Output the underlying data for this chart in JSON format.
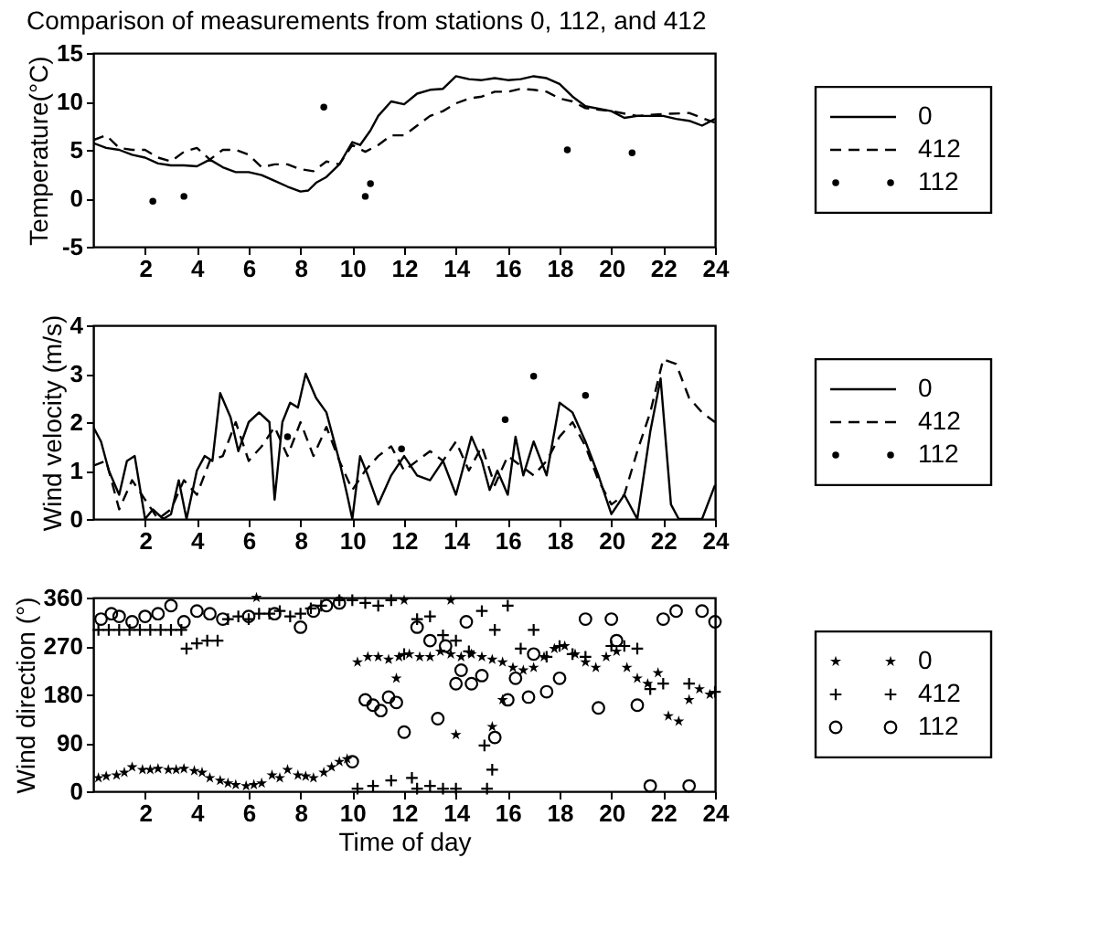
{
  "chart_data": [
    {
      "type": "line",
      "title": "Comparison of measurements from stations 0, 112, and 412",
      "ylabel": "Temperature(°C)",
      "xlim": [
        0,
        24
      ],
      "xticks": [
        2,
        4,
        6,
        8,
        10,
        12,
        14,
        16,
        18,
        20,
        22,
        24
      ],
      "ylim": [
        -5,
        15
      ],
      "yticks": [
        -5,
        0,
        5,
        10,
        15
      ],
      "legend": "right",
      "series": [
        {
          "name": "0",
          "color": "#000000",
          "line_style": "solid",
          "x": [
            0,
            0.5,
            1,
            1.5,
            2,
            2.5,
            3,
            3.5,
            4,
            4.5,
            5,
            5.5,
            6,
            6.5,
            7,
            7.5,
            8,
            8.3,
            8.6,
            9,
            9.5,
            10,
            10.3,
            10.7,
            11,
            11.5,
            12,
            12.5,
            13,
            13.5,
            14,
            14.5,
            15,
            15.5,
            16,
            16.5,
            17,
            17.5,
            18,
            18.5,
            19,
            20,
            20.5,
            21,
            22,
            22.5,
            23,
            23.5,
            24
          ],
          "values": [
            5.7,
            5.2,
            5,
            4.5,
            4.2,
            3.6,
            3.4,
            3.4,
            3.3,
            4.0,
            3.2,
            2.7,
            2.7,
            2.4,
            1.8,
            1.2,
            0.7,
            0.8,
            1.6,
            2.2,
            3.5,
            5.8,
            5.5,
            7.0,
            8.5,
            10,
            9.7,
            10.8,
            11.2,
            11.3,
            12.6,
            12.3,
            12.2,
            12.4,
            12.2,
            12.3,
            12.6,
            12.4,
            11.8,
            10.5,
            9.5,
            9.0,
            8.3,
            8.5,
            8.5,
            8.2,
            8.0,
            7.5,
            8.2
          ]
        },
        {
          "name": "412",
          "color": "#000000",
          "line_style": "dashed",
          "x": [
            0,
            0.5,
            1,
            1.5,
            2,
            2.5,
            3,
            3.5,
            4,
            4.5,
            5,
            5.5,
            6,
            6.5,
            7,
            7.5,
            8,
            8.5,
            9,
            9.5,
            10,
            10.5,
            11,
            11.5,
            12,
            12.5,
            13,
            13.5,
            14,
            14.5,
            15,
            15.5,
            16,
            16.5,
            17,
            17.5,
            18,
            18.5,
            19,
            20,
            21,
            22,
            23,
            23.5,
            24
          ],
          "values": [
            6,
            6.5,
            5.2,
            5,
            5,
            4.2,
            3.8,
            4.8,
            5.2,
            4,
            5,
            5,
            4.5,
            3.2,
            3.5,
            3.5,
            3.0,
            2.8,
            3.8,
            3.5,
            5.5,
            4.8,
            5.5,
            6.5,
            6.5,
            7.5,
            8.5,
            9,
            9.8,
            10.3,
            10.5,
            11,
            11,
            11.3,
            11.2,
            11,
            10.3,
            10.0,
            9.3,
            9,
            8.5,
            8.7,
            8.8,
            8.3,
            7.8
          ]
        },
        {
          "name": "112",
          "color": "#000000",
          "type": "scatter",
          "marker": "circle",
          "x": [
            2.3,
            3.5,
            8.9,
            10.5,
            10.7,
            18.3,
            20.8
          ],
          "values": [
            -0.3,
            0.2,
            9.4,
            0.2,
            1.5,
            5,
            4.7
          ]
        }
      ]
    },
    {
      "type": "line",
      "ylabel": "Wind velocity (m/s)",
      "xlim": [
        0,
        24
      ],
      "xticks": [
        2,
        4,
        6,
        8,
        10,
        12,
        14,
        16,
        18,
        20,
        22,
        24
      ],
      "ylim": [
        0,
        4
      ],
      "yticks": [
        0,
        1,
        2,
        3,
        4
      ],
      "legend": "right",
      "series": [
        {
          "name": "0",
          "color": "#000000",
          "line_style": "solid",
          "x": [
            0,
            0.3,
            0.6,
            1,
            1.3,
            1.6,
            2,
            2.3,
            2.7,
            3,
            3.3,
            3.6,
            4,
            4.3,
            4.6,
            4.9,
            5.3,
            5.6,
            6,
            6.4,
            6.8,
            7,
            7.3,
            7.6,
            7.9,
            8.2,
            8.6,
            9,
            9.5,
            9.8,
            10,
            10.3,
            10.6,
            11,
            11.5,
            12,
            12.5,
            13,
            13.5,
            14,
            14.6,
            15,
            15.3,
            15.6,
            16,
            16.3,
            16.6,
            17,
            17.5,
            18,
            18.5,
            19,
            19.5,
            20,
            20.5,
            21,
            21.5,
            21.9,
            22.3,
            22.6,
            23.5,
            24
          ],
          "values": [
            1.9,
            1.6,
            1.0,
            0.5,
            1.2,
            1.3,
            0,
            0.2,
            0,
            0.1,
            0.8,
            0,
            1.0,
            1.3,
            1.2,
            2.6,
            2.1,
            1.4,
            2.0,
            2.2,
            2.0,
            0.4,
            2.0,
            2.4,
            2.3,
            3.0,
            2.5,
            2.2,
            1.2,
            0.5,
            0,
            1.3,
            0.9,
            0.3,
            0.9,
            1.3,
            0.9,
            0.8,
            1.2,
            0.5,
            1.7,
            1.2,
            0.6,
            1.0,
            0.5,
            1.7,
            0.9,
            1.6,
            0.9,
            2.4,
            2.2,
            1.6,
            0.9,
            0.1,
            0.5,
            0,
            1.8,
            2.9,
            0.3,
            0,
            0,
            0.7
          ]
        },
        {
          "name": "412",
          "color": "#000000",
          "line_style": "dashed",
          "x": [
            0,
            0.5,
            1,
            1.5,
            2,
            2.5,
            3,
            3.5,
            4,
            4.5,
            5,
            5.5,
            6,
            6.5,
            7,
            7.5,
            8,
            8.5,
            9,
            9.5,
            10,
            10.5,
            11,
            11.5,
            12,
            12.5,
            13,
            13.5,
            14,
            14.5,
            15,
            15.5,
            16,
            16.5,
            17,
            17.5,
            18,
            18.5,
            19,
            19.5,
            20,
            20.5,
            21,
            21.5,
            22,
            22.5,
            23,
            23.5,
            24
          ],
          "values": [
            1.1,
            1.2,
            0.2,
            0.8,
            0.4,
            0,
            0.2,
            0.8,
            0.5,
            1.2,
            1.3,
            2.0,
            1.2,
            1.5,
            1.9,
            1.3,
            2.0,
            1.3,
            1.9,
            1.2,
            0.6,
            1.0,
            1.3,
            1.5,
            1.0,
            1.2,
            1.4,
            1.2,
            1.6,
            1.0,
            1.5,
            0.7,
            1.3,
            1.1,
            0.9,
            1.2,
            1.7,
            2.0,
            1.5,
            0.8,
            0.3,
            0.5,
            1.4,
            2.2,
            3.3,
            3.2,
            2.5,
            2.2,
            2.0
          ]
        },
        {
          "name": "112",
          "color": "#000000",
          "type": "scatter",
          "marker": "circle",
          "x": [
            7.5,
            11.9,
            15.9,
            17.0,
            19.0
          ],
          "values": [
            1.7,
            1.45,
            2.05,
            2.95,
            2.55
          ]
        }
      ]
    },
    {
      "type": "scatter",
      "xlabel": "Time of day",
      "ylabel": "Wind direction (°)",
      "xlim": [
        0,
        24
      ],
      "xticks": [
        2,
        4,
        6,
        8,
        10,
        12,
        14,
        16,
        18,
        20,
        22,
        24
      ],
      "ylim": [
        0,
        360
      ],
      "yticks": [
        0,
        90,
        180,
        270,
        360
      ],
      "legend": "right",
      "series": [
        {
          "name": "0",
          "color": "#000000",
          "marker": "star",
          "x": [
            0.2,
            0.5,
            0.9,
            1.2,
            1.5,
            1.9,
            2.2,
            2.5,
            2.9,
            3.2,
            3.5,
            3.9,
            4.2,
            4.5,
            4.9,
            5.2,
            5.5,
            5.9,
            6.2,
            6.5,
            6.9,
            7.2,
            7.5,
            7.9,
            8.2,
            8.5,
            8.9,
            9.2,
            9.5,
            9.8,
            10.2,
            10.6,
            11.0,
            11.4,
            11.8,
            12.2,
            12.6,
            13.0,
            13.4,
            13.8,
            14.2,
            14.6,
            15.0,
            15.4,
            15.8,
            16.2,
            16.6,
            17.0,
            17.4,
            17.8,
            18.2,
            18.6,
            19.0,
            19.4,
            19.8,
            20.2,
            20.6,
            21.0,
            21.4,
            21.8,
            22.2,
            22.6,
            23.0,
            23.4,
            23.8,
            11.7,
            14.0,
            15.4,
            13.8,
            6.3,
            12.0,
            15.8
          ],
          "values": [
            25,
            28,
            30,
            35,
            45,
            40,
            40,
            42,
            40,
            40,
            42,
            38,
            35,
            25,
            20,
            15,
            12,
            10,
            12,
            15,
            30,
            25,
            40,
            30,
            28,
            25,
            35,
            45,
            55,
            60,
            240,
            250,
            250,
            245,
            250,
            255,
            250,
            250,
            260,
            255,
            250,
            255,
            250,
            245,
            240,
            230,
            225,
            230,
            250,
            265,
            270,
            255,
            240,
            230,
            250,
            260,
            230,
            210,
            200,
            220,
            140,
            130,
            170,
            190,
            180,
            210,
            105,
            120,
            355,
            360,
            355,
            170
          ]
        },
        {
          "name": "412",
          "color": "#000000",
          "marker": "cross",
          "x": [
            0.2,
            0.6,
            1.0,
            1.4,
            1.8,
            2.2,
            2.6,
            3.0,
            3.4,
            3.6,
            4.0,
            4.4,
            4.8,
            5.2,
            5.6,
            6.0,
            6.4,
            6.8,
            7.2,
            7.6,
            8.0,
            8.4,
            8.8,
            9.5,
            10,
            10.5,
            11,
            11.5,
            12,
            12.5,
            13,
            13.5,
            14,
            14.5,
            15,
            15.5,
            16,
            16.5,
            17,
            17.5,
            18,
            18.5,
            19,
            20,
            20.5,
            21,
            21.5,
            22,
            23,
            24,
            10.2,
            10.8,
            11.5,
            12.3,
            12.5,
            13.0,
            13.5,
            14.0,
            15.2,
            15.4,
            15.1
          ],
          "values": [
            300,
            300,
            300,
            300,
            300,
            300,
            300,
            300,
            300,
            265,
            275,
            280,
            280,
            320,
            325,
            320,
            330,
            330,
            335,
            325,
            330,
            340,
            345,
            355,
            355,
            350,
            345,
            355,
            255,
            320,
            325,
            290,
            280,
            260,
            335,
            300,
            345,
            265,
            300,
            250,
            270,
            255,
            250,
            270,
            270,
            265,
            190,
            200,
            200,
            185,
            5,
            10,
            20,
            25,
            5,
            10,
            5,
            5,
            5,
            40,
            85
          ]
        },
        {
          "name": "112",
          "color": "#000000",
          "marker": "circle",
          "x": [
            0.3,
            0.7,
            1,
            1.5,
            2,
            2.5,
            3,
            3.5,
            4,
            4.5,
            5,
            6,
            7,
            8,
            8.5,
            9,
            9.5,
            10,
            10.5,
            10.8,
            11.1,
            11.4,
            11.7,
            12,
            12.5,
            13,
            13.3,
            13.6,
            14,
            14.2,
            14.4,
            14.6,
            15,
            15.5,
            16,
            16.3,
            16.8,
            17,
            17.5,
            18,
            19,
            19.5,
            20,
            20.2,
            21,
            21.5,
            22,
            22.5,
            23,
            23.5,
            24
          ],
          "values": [
            320,
            330,
            325,
            315,
            325,
            330,
            345,
            315,
            335,
            330,
            320,
            325,
            330,
            305,
            335,
            345,
            350,
            55,
            170,
            160,
            150,
            175,
            165,
            110,
            305,
            280,
            135,
            270,
            200,
            225,
            315,
            200,
            215,
            100,
            170,
            210,
            175,
            255,
            185,
            210,
            320,
            155,
            320,
            280,
            160,
            10,
            320,
            335,
            10,
            335,
            315
          ]
        }
      ]
    }
  ]
}
